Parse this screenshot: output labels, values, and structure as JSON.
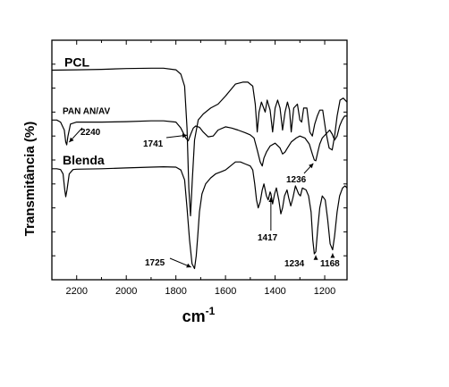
{
  "chart_data": {
    "type": "line",
    "title": "",
    "xlabel": "cm",
    "xlabel_superscript": "-1",
    "ylabel": "Transmitância (%)",
    "xlim": [
      2300,
      1110
    ],
    "x_reversed": true,
    "x_ticks": [
      "2200",
      "2000",
      "1800",
      "1600",
      "1400",
      "1200"
    ],
    "y_ticks_labeled": false,
    "grid": false,
    "legend": "none",
    "y_units": "arbitrary (stacked, offset traces)",
    "series": [
      {
        "name": "PCL",
        "color": "#000000",
        "points": [
          [
            2300,
            89.5
          ],
          [
            2200,
            89.6
          ],
          [
            2100,
            89.7
          ],
          [
            2000,
            89.9
          ],
          [
            1900,
            90.0
          ],
          [
            1850,
            90.0
          ],
          [
            1800,
            89.6
          ],
          [
            1780,
            88.5
          ],
          [
            1765,
            85.5
          ],
          [
            1755,
            75.0
          ],
          [
            1748,
            60.0
          ],
          [
            1741,
            53.0
          ],
          [
            1734,
            62.0
          ],
          [
            1725,
            72.0
          ],
          [
            1710,
            77.0
          ],
          [
            1690,
            78.5
          ],
          [
            1660,
            80.0
          ],
          [
            1630,
            81.0
          ],
          [
            1600,
            83.0
          ],
          [
            1560,
            86.0
          ],
          [
            1530,
            86.5
          ],
          [
            1510,
            86.5
          ],
          [
            1490,
            85.5
          ],
          [
            1480,
            81.0
          ],
          [
            1472,
            74.0
          ],
          [
            1465,
            79.0
          ],
          [
            1455,
            81.5
          ],
          [
            1440,
            79.0
          ],
          [
            1432,
            82.0
          ],
          [
            1420,
            79.5
          ],
          [
            1410,
            74.0
          ],
          [
            1400,
            80.0
          ],
          [
            1390,
            82.0
          ],
          [
            1380,
            80.0
          ],
          [
            1370,
            74.5
          ],
          [
            1360,
            79.0
          ],
          [
            1350,
            81.5
          ],
          [
            1342,
            79.5
          ],
          [
            1335,
            74.0
          ],
          [
            1325,
            80.0
          ],
          [
            1310,
            81.0
          ],
          [
            1300,
            77.0
          ],
          [
            1293,
            76.5
          ],
          [
            1285,
            80.0
          ],
          [
            1272,
            80.0
          ],
          [
            1260,
            74.0
          ],
          [
            1250,
            73.0
          ],
          [
            1240,
            76.0
          ],
          [
            1230,
            78.0
          ],
          [
            1220,
            79.5
          ],
          [
            1208,
            79.5
          ],
          [
            1195,
            74.0
          ],
          [
            1182,
            70.0
          ],
          [
            1170,
            69.5
          ],
          [
            1160,
            73.0
          ],
          [
            1150,
            78.0
          ],
          [
            1138,
            82.0
          ],
          [
            1125,
            82.5
          ],
          [
            1110,
            81.5
          ]
        ]
      },
      {
        "name": "PAN AN/AV",
        "color": "#000000",
        "points": [
          [
            2300,
            77.0
          ],
          [
            2280,
            77.0
          ],
          [
            2265,
            76.5
          ],
          [
            2250,
            74.5
          ],
          [
            2244,
            71.5
          ],
          [
            2240,
            70.8
          ],
          [
            2235,
            73.0
          ],
          [
            2225,
            76.0
          ],
          [
            2200,
            76.5
          ],
          [
            2100,
            76.5
          ],
          [
            2000,
            76.6
          ],
          [
            1900,
            76.8
          ],
          [
            1850,
            76.8
          ],
          [
            1800,
            76.5
          ],
          [
            1780,
            75.0
          ],
          [
            1760,
            72.5
          ],
          [
            1750,
            71.8
          ],
          [
            1740,
            73.5
          ],
          [
            1730,
            75.0
          ],
          [
            1720,
            75.5
          ],
          [
            1705,
            75.2
          ],
          [
            1690,
            74.0
          ],
          [
            1670,
            72.8
          ],
          [
            1650,
            73.0
          ],
          [
            1630,
            74.5
          ],
          [
            1600,
            75.3
          ],
          [
            1575,
            75.0
          ],
          [
            1550,
            74.5
          ],
          [
            1520,
            73.8
          ],
          [
            1500,
            73.3
          ],
          [
            1485,
            72.5
          ],
          [
            1472,
            69.5
          ],
          [
            1460,
            66.5
          ],
          [
            1452,
            65.5
          ],
          [
            1445,
            67.5
          ],
          [
            1435,
            69.0
          ],
          [
            1420,
            70.5
          ],
          [
            1400,
            71.2
          ],
          [
            1380,
            70.0
          ],
          [
            1370,
            68.5
          ],
          [
            1360,
            69.0
          ],
          [
            1350,
            70.0
          ],
          [
            1335,
            71.5
          ],
          [
            1315,
            72.5
          ],
          [
            1300,
            73.0
          ],
          [
            1280,
            72.5
          ],
          [
            1262,
            71.0
          ],
          [
            1250,
            68.5
          ],
          [
            1242,
            67.0
          ],
          [
            1236,
            66.8
          ],
          [
            1228,
            69.0
          ],
          [
            1220,
            71.0
          ],
          [
            1210,
            72.5
          ],
          [
            1195,
            73.5
          ],
          [
            1180,
            74.5
          ],
          [
            1170,
            73.5
          ],
          [
            1160,
            72.0
          ],
          [
            1150,
            73.0
          ],
          [
            1140,
            75.5
          ],
          [
            1130,
            77.0
          ],
          [
            1120,
            78.0
          ],
          [
            1110,
            78.0
          ]
        ]
      },
      {
        "name": "Blenda",
        "color": "#000000",
        "points": [
          [
            2300,
            64.8
          ],
          [
            2280,
            64.8
          ],
          [
            2265,
            64.6
          ],
          [
            2255,
            63.5
          ],
          [
            2248,
            59.5
          ],
          [
            2244,
            57.8
          ],
          [
            2239,
            59.5
          ],
          [
            2230,
            63.5
          ],
          [
            2215,
            64.6
          ],
          [
            2200,
            64.7
          ],
          [
            2100,
            64.8
          ],
          [
            2000,
            65.0
          ],
          [
            1900,
            65.2
          ],
          [
            1850,
            65.3
          ],
          [
            1800,
            65.2
          ],
          [
            1780,
            64.5
          ],
          [
            1765,
            62.0
          ],
          [
            1755,
            55.0
          ],
          [
            1745,
            47.0
          ],
          [
            1735,
            41.0
          ],
          [
            1725,
            39.8
          ],
          [
            1718,
            43.0
          ],
          [
            1712,
            48.0
          ],
          [
            1705,
            54.0
          ],
          [
            1695,
            58.5
          ],
          [
            1680,
            61.0
          ],
          [
            1660,
            62.5
          ],
          [
            1640,
            63.5
          ],
          [
            1620,
            64.0
          ],
          [
            1600,
            64.5
          ],
          [
            1580,
            65.5
          ],
          [
            1560,
            66.5
          ],
          [
            1540,
            66.5
          ],
          [
            1520,
            66.0
          ],
          [
            1500,
            65.5
          ],
          [
            1490,
            64.5
          ],
          [
            1482,
            61.0
          ],
          [
            1475,
            57.0
          ],
          [
            1468,
            55.0
          ],
          [
            1460,
            56.5
          ],
          [
            1452,
            59.5
          ],
          [
            1445,
            61.0
          ],
          [
            1435,
            58.0
          ],
          [
            1428,
            57.0
          ],
          [
            1420,
            59.0
          ],
          [
            1417,
            58.5
          ],
          [
            1410,
            56.0
          ],
          [
            1402,
            58.5
          ],
          [
            1395,
            60.0
          ],
          [
            1385,
            57.0
          ],
          [
            1377,
            53.5
          ],
          [
            1370,
            55.0
          ],
          [
            1362,
            58.0
          ],
          [
            1352,
            59.5
          ],
          [
            1345,
            57.5
          ],
          [
            1337,
            55.5
          ],
          [
            1328,
            57.5
          ],
          [
            1318,
            60.5
          ],
          [
            1305,
            58.5
          ],
          [
            1298,
            58.0
          ],
          [
            1290,
            60.0
          ],
          [
            1275,
            59.5
          ],
          [
            1265,
            58.0
          ],
          [
            1255,
            54.0
          ],
          [
            1248,
            47.0
          ],
          [
            1242,
            43.5
          ],
          [
            1236,
            44.0
          ],
          [
            1228,
            50.0
          ],
          [
            1220,
            55.0
          ],
          [
            1210,
            58.0
          ],
          [
            1198,
            57.0
          ],
          [
            1188,
            52.0
          ],
          [
            1178,
            46.0
          ],
          [
            1168,
            44.5
          ],
          [
            1160,
            48.0
          ],
          [
            1150,
            54.0
          ],
          [
            1140,
            58.0
          ],
          [
            1128,
            60.0
          ],
          [
            1118,
            60.5
          ],
          [
            1110,
            60.0
          ]
        ]
      }
    ],
    "ylim": [
      37,
      97
    ],
    "series_labels": [
      {
        "text": "PCL",
        "series": 0
      },
      {
        "text": "PAN AN/AV",
        "series": 1
      },
      {
        "text": "Blenda",
        "series": 2
      }
    ],
    "annotations": [
      {
        "text": "2240",
        "series": 1,
        "target_x": 2244
      },
      {
        "text": "1741",
        "series": 1,
        "target_x": 1741
      },
      {
        "text": "1236",
        "series": 1,
        "target_x": 1236
      },
      {
        "text": "1725",
        "series": 2,
        "target_x": 1725
      },
      {
        "text": "1417",
        "series": 2,
        "target_x": 1417
      },
      {
        "text": "1234",
        "series": 2,
        "target_x": 1236
      },
      {
        "text": "1168",
        "series": 2,
        "target_x": 1168
      }
    ]
  }
}
